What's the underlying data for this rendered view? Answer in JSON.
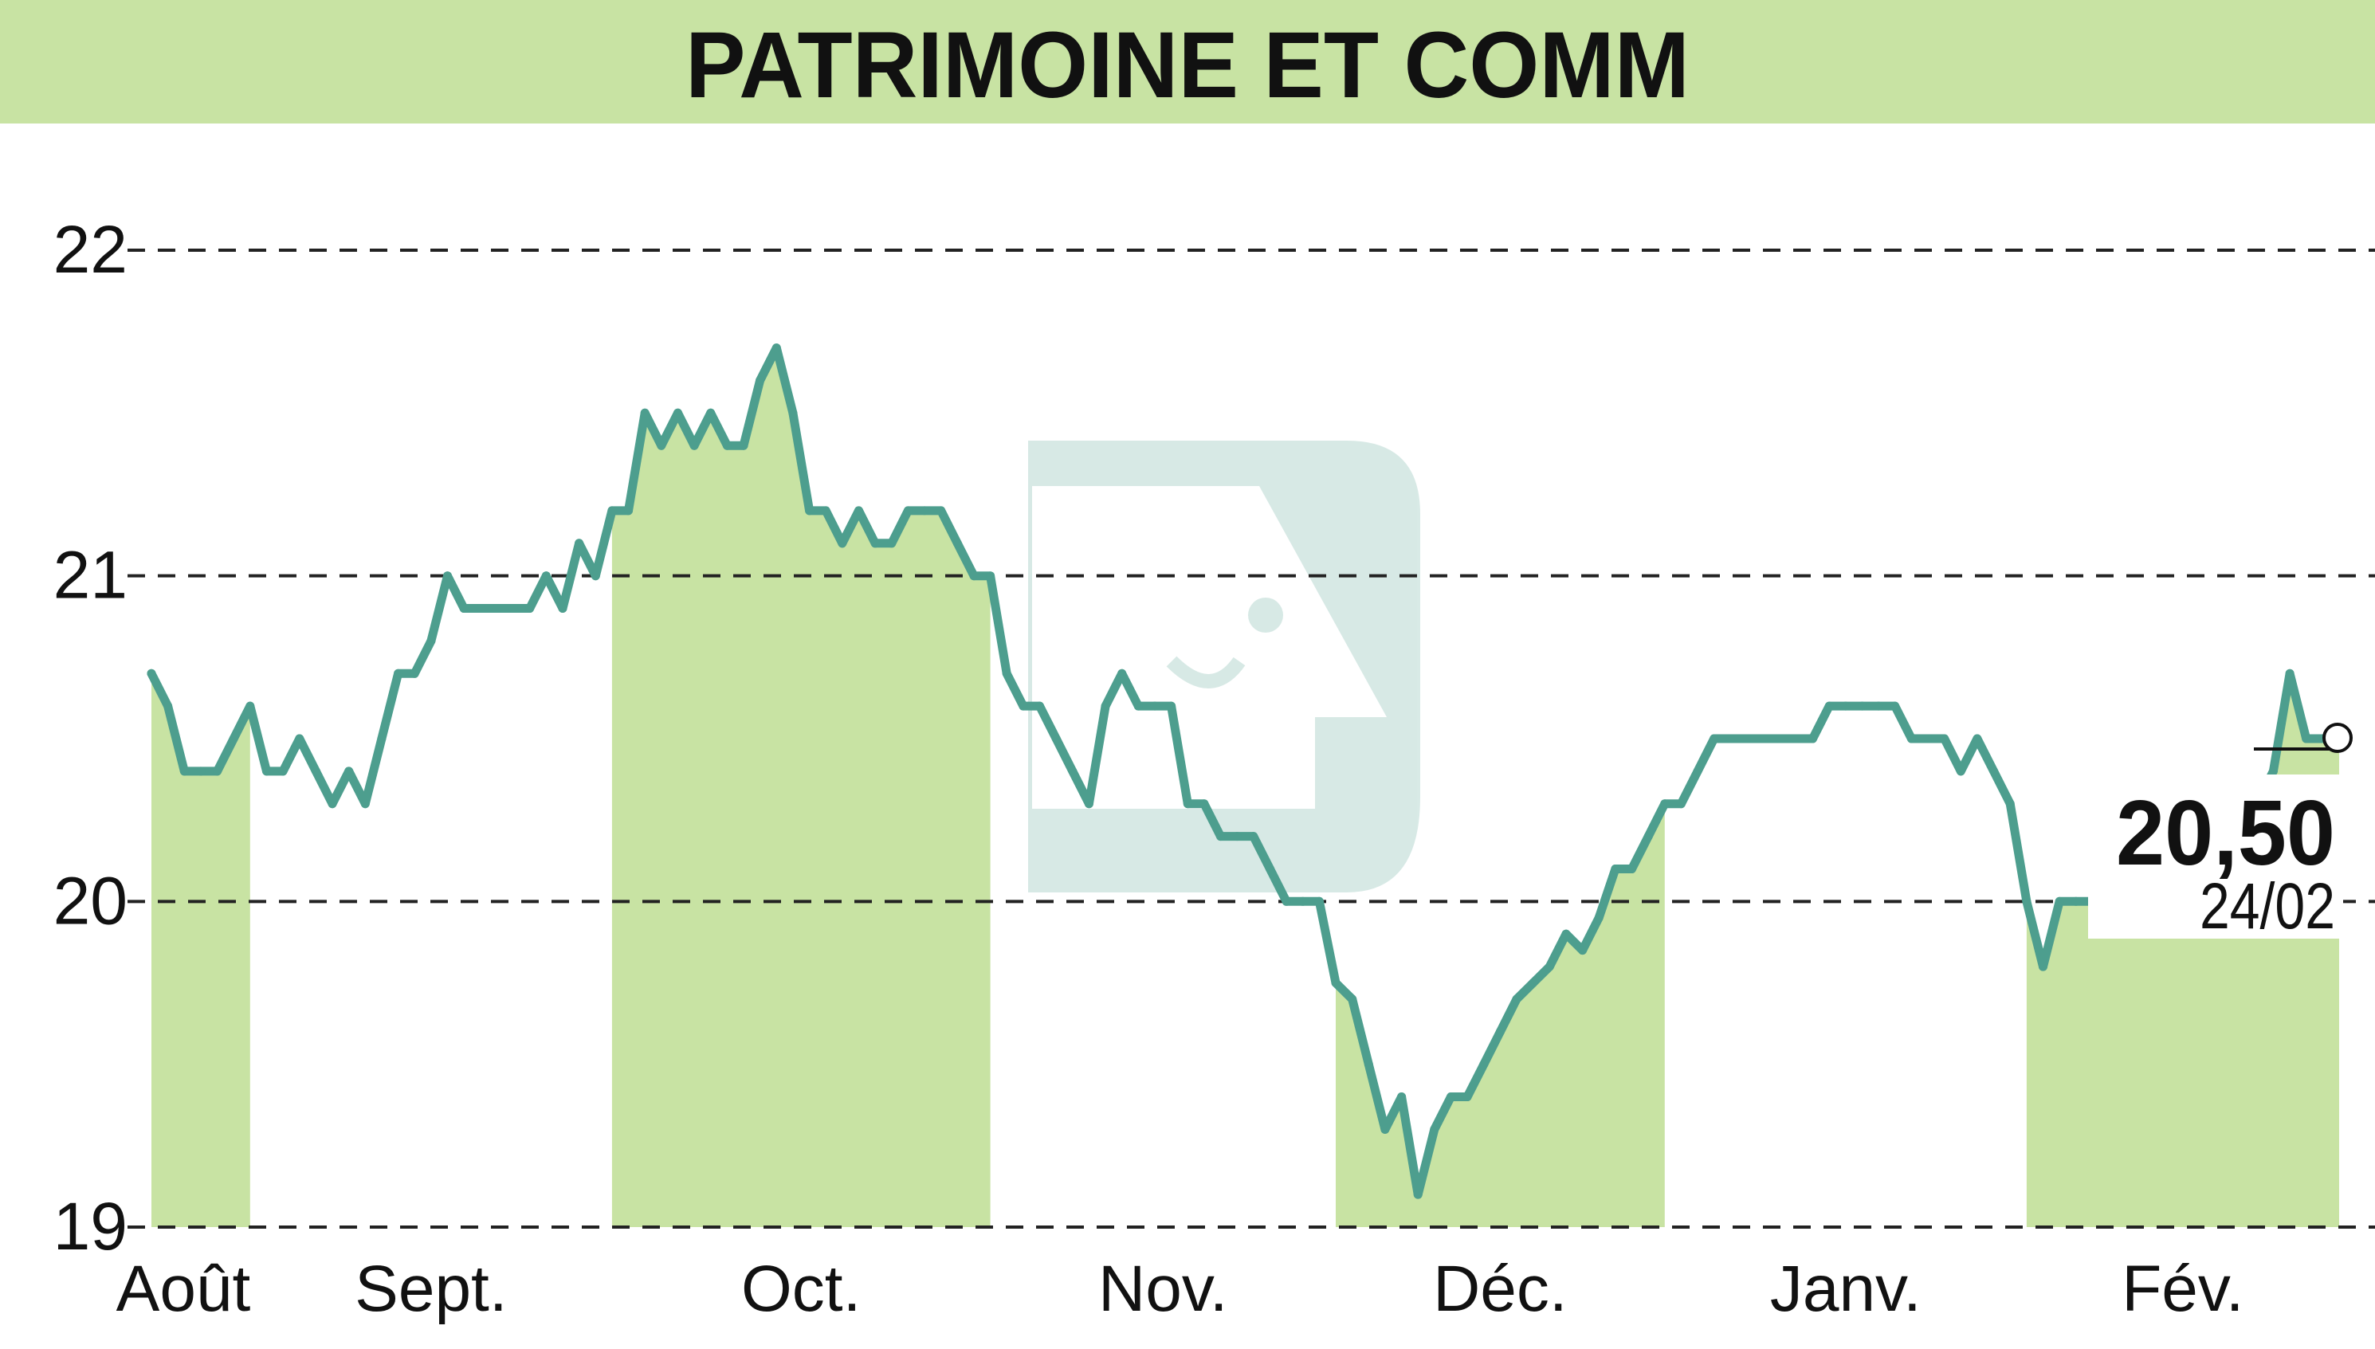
{
  "chart_data": {
    "type": "line",
    "title": "PATRIMOINE ET COMM",
    "ylim": [
      19,
      22
    ],
    "yticks": [
      "22",
      "21",
      "20",
      "19"
    ],
    "ytick_values": [
      22,
      21,
      20,
      19
    ],
    "grid": "horizontal dashed",
    "months": [
      {
        "label": "Août",
        "start": 0,
        "end": 6,
        "shaded": true
      },
      {
        "label": "Sept.",
        "start": 6,
        "end": 28,
        "shaded": false
      },
      {
        "label": "Oct.",
        "start": 28,
        "end": 51,
        "shaded": true
      },
      {
        "label": "Nov.",
        "start": 51,
        "end": 72,
        "shaded": false
      },
      {
        "label": "Déc.",
        "start": 72,
        "end": 92,
        "shaded": true
      },
      {
        "label": "Janv.",
        "start": 92,
        "end": 114,
        "shaded": false
      },
      {
        "label": "Fév.",
        "start": 114,
        "end": 134,
        "shaded": true
      }
    ],
    "values": [
      20.7,
      20.6,
      20.4,
      20.4,
      20.4,
      20.5,
      20.6,
      20.4,
      20.4,
      20.5,
      20.4,
      20.3,
      20.4,
      20.3,
      20.5,
      20.7,
      20.7,
      20.8,
      21.0,
      20.9,
      20.9,
      20.9,
      20.9,
      20.9,
      21.0,
      20.9,
      21.1,
      21.0,
      21.2,
      21.2,
      21.5,
      21.4,
      21.5,
      21.4,
      21.5,
      21.4,
      21.4,
      21.6,
      21.7,
      21.5,
      21.2,
      21.2,
      21.1,
      21.2,
      21.1,
      21.1,
      21.2,
      21.2,
      21.2,
      21.1,
      21.0,
      21.0,
      20.7,
      20.6,
      20.6,
      20.5,
      20.4,
      20.3,
      20.6,
      20.7,
      20.6,
      20.6,
      20.6,
      20.3,
      20.3,
      20.2,
      20.2,
      20.2,
      20.1,
      20.0,
      20.0,
      20.0,
      19.75,
      19.7,
      19.5,
      19.3,
      19.4,
      19.1,
      19.3,
      19.4,
      19.4,
      19.5,
      19.6,
      19.7,
      19.75,
      19.8,
      19.9,
      19.85,
      19.95,
      20.1,
      20.1,
      20.2,
      20.3,
      20.3,
      20.4,
      20.5,
      20.5,
      20.5,
      20.5,
      20.5,
      20.5,
      20.5,
      20.6,
      20.6,
      20.6,
      20.6,
      20.6,
      20.5,
      20.5,
      20.5,
      20.4,
      20.5,
      20.4,
      20.3,
      20.0,
      19.8,
      20.0,
      20.0,
      20.0,
      20.0,
      20.0,
      20.0,
      20.0,
      20.0,
      20.1,
      20.1,
      20.1,
      20.2,
      20.3,
      20.4,
      20.7,
      20.5,
      20.5,
      20.5
    ],
    "last_value": "20,50",
    "last_date": "24/02",
    "colors": {
      "line": "#4d9e8e",
      "shade": "#c8e3a3",
      "title_band": "#c8e3a3",
      "text": "#111111"
    }
  }
}
